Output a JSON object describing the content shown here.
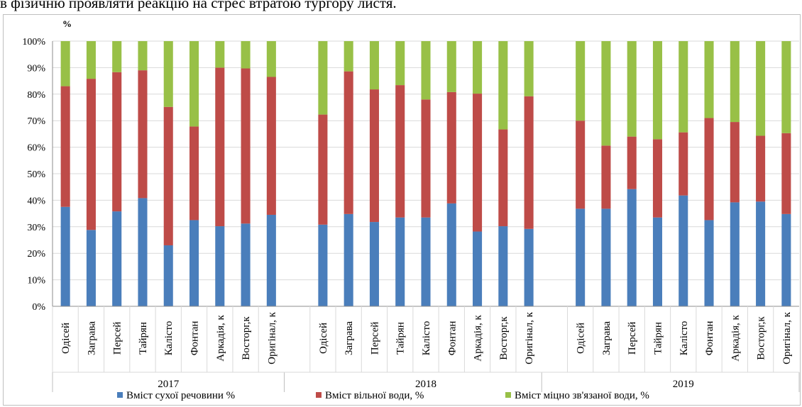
{
  "top_text": "в фізичню проявляти реакцію на стрес втратою тургору листя.",
  "chart_data": {
    "type": "bar",
    "stacked": true,
    "y_unit": "%",
    "ylim": [
      0,
      100
    ],
    "yticks": [
      "0%",
      "10%",
      "20%",
      "30%",
      "40%",
      "50%",
      "60%",
      "70%",
      "80%",
      "90%",
      "100%"
    ],
    "grid": true,
    "legend_position": "bottom",
    "groups": [
      {
        "label": "2017",
        "categories": [
          "Одісей",
          "Заграва",
          "Персей",
          "Тайрян",
          "Калісто",
          "Фонтан",
          "Аркадія, к",
          "Восторг,к",
          "Оригінал, к"
        ]
      },
      {
        "label": "2018",
        "categories": [
          "Одісей",
          "Заграва",
          "Персей",
          "Тайрян",
          "Калісто",
          "Фонтан",
          "Аркадія, к",
          "Восторг,к",
          "Оригінал, к"
        ]
      },
      {
        "label": "2019",
        "categories": [
          "Одісей",
          "Заграва",
          "Персей",
          "Тайрян",
          "Калісто",
          "Фонтан",
          "Аркадія, к",
          "Восторг,к",
          "Оригінал, к"
        ]
      }
    ],
    "series": [
      {
        "name": "Вміст сухої речовини %",
        "color": "#4a7ebb",
        "values": [
          [
            37.5,
            28.8,
            35.8,
            40.8,
            23.0,
            32.5,
            30.2,
            31.2,
            34.5
          ],
          [
            30.8,
            34.8,
            31.8,
            33.5,
            33.5,
            38.8,
            28.2,
            30.2,
            29.2
          ],
          [
            36.8,
            36.8,
            44.2,
            33.5,
            41.8,
            32.5,
            39.2,
            39.5,
            34.8
          ]
        ]
      },
      {
        "name": "Вміст вільної води, %",
        "color": "#be4b48",
        "values": [
          [
            45.5,
            57.0,
            52.5,
            48.2,
            52.2,
            35.3,
            59.8,
            58.5,
            52.0
          ],
          [
            41.5,
            53.8,
            50.0,
            49.9,
            44.5,
            42.0,
            52.0,
            36.5,
            50.0
          ],
          [
            33.2,
            23.8,
            19.8,
            29.5,
            23.8,
            38.5,
            30.3,
            24.8,
            30.5
          ]
        ]
      },
      {
        "name": "Вміст міцно зв'язаної води, %",
        "color": "#98c047",
        "values": [
          [
            17.0,
            14.2,
            11.7,
            11.0,
            24.8,
            32.2,
            10.0,
            10.3,
            13.5
          ],
          [
            27.7,
            11.4,
            18.2,
            16.6,
            22.0,
            19.2,
            19.8,
            33.3,
            20.8
          ],
          [
            30.0,
            39.4,
            36.0,
            37.0,
            34.4,
            29.0,
            30.5,
            35.7,
            34.7
          ]
        ]
      }
    ]
  }
}
